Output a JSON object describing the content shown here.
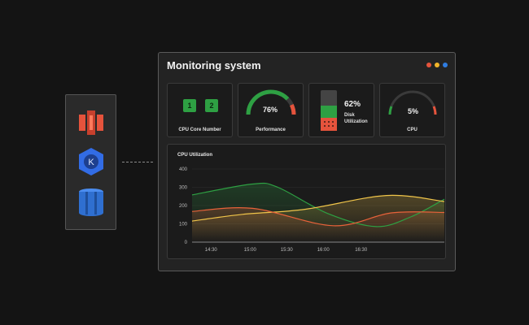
{
  "window": {
    "title": "Monitoring system",
    "dots": [
      "#e5533c",
      "#f0b429",
      "#2f7de1"
    ]
  },
  "sidebar": {
    "icons": [
      "aws-kinesis-icon",
      "kubernetes-icon",
      "aws-storage-icon"
    ]
  },
  "cards": {
    "cpu_cores": {
      "label": "CPU Core Number",
      "chips": [
        "1",
        "2"
      ]
    },
    "performance": {
      "label": "Performance",
      "value_text": "76%",
      "value": 0.76
    },
    "disk": {
      "label_line1": "Disk",
      "label_line2": "Utilization",
      "value_text": "62%",
      "value": 0.62
    },
    "cpu": {
      "label": "CPU",
      "value_text": "5%",
      "value": 0.05
    }
  },
  "colors": {
    "green": "#2ea043",
    "red": "#e5533c",
    "yellow": "#f0c54a",
    "orange": "#e8623a"
  },
  "chart_data": {
    "type": "line",
    "title": "CPU Utilization",
    "x": [
      "14:30",
      "15:00",
      "15:30",
      "16:00",
      "16:30"
    ],
    "ylim": [
      0,
      400
    ],
    "yticks": [
      0,
      100,
      200,
      300,
      400
    ],
    "grid": true,
    "series": [
      {
        "color": "#2ea043",
        "points": [
          [
            0,
            258
          ],
          [
            0.24,
            318
          ],
          [
            0.34,
            300
          ],
          [
            0.54,
            155
          ],
          [
            0.73,
            85
          ],
          [
            0.87,
            140
          ],
          [
            1,
            235
          ]
        ]
      },
      {
        "color": "#f0c54a",
        "points": [
          [
            0,
            115
          ],
          [
            0.2,
            152
          ],
          [
            0.45,
            180
          ],
          [
            0.77,
            255
          ],
          [
            1,
            222
          ]
        ]
      },
      {
        "color": "#e8623a",
        "points": [
          [
            0,
            168
          ],
          [
            0.24,
            185
          ],
          [
            0.56,
            90
          ],
          [
            0.79,
            160
          ],
          [
            1,
            162
          ]
        ]
      }
    ]
  }
}
